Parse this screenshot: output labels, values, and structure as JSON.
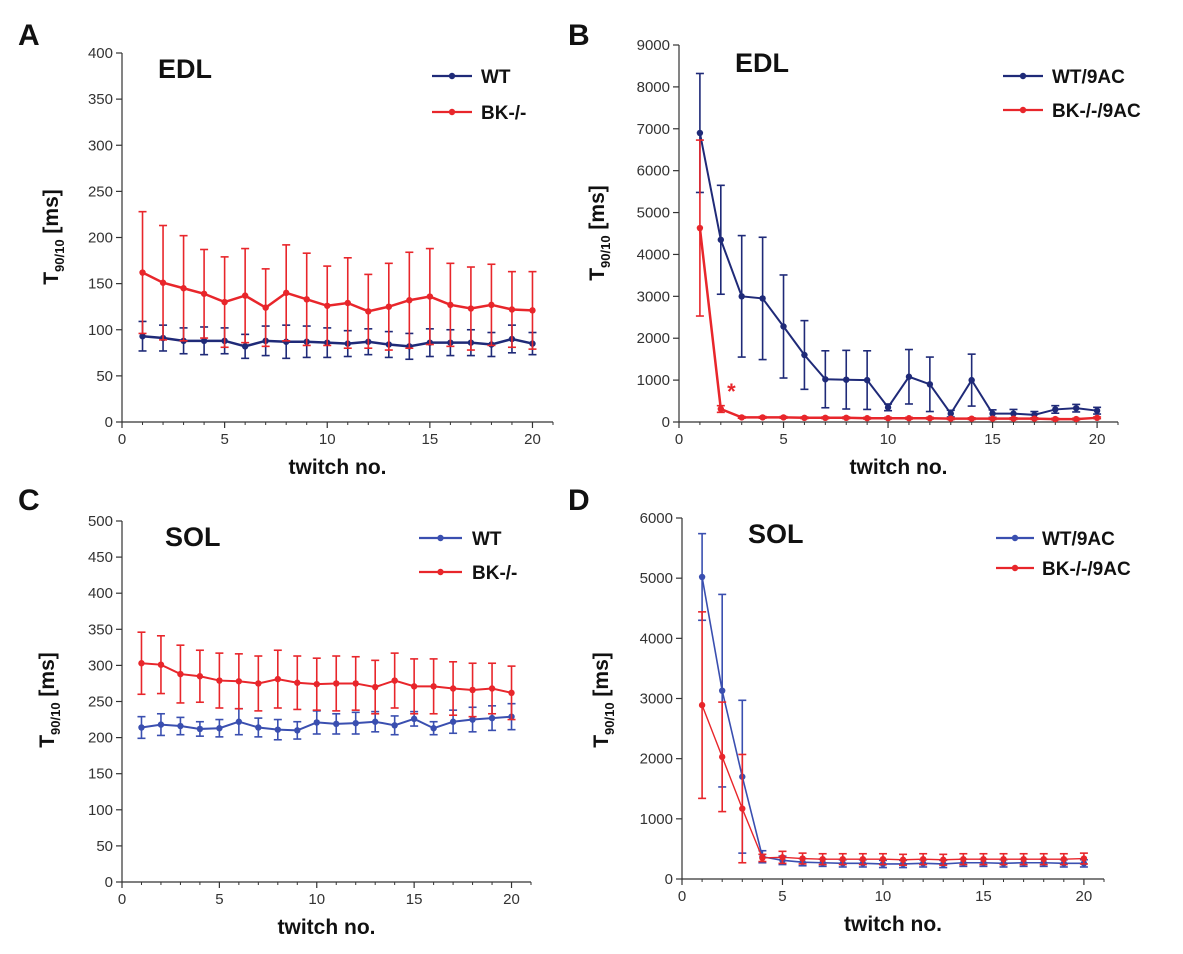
{
  "figure_label": "Four-panel figure: T90/10 relaxation time across twitches",
  "colors": {
    "wt_dark": "#1f2a78",
    "bk_red": "#e8262b",
    "wt_blue": "#3a4fb0",
    "axis": "#333333"
  },
  "chart_data": [
    {
      "panel": "A",
      "type": "line",
      "muscle": "EDL",
      "xlabel": "twitch no.",
      "ylabel_main": "T",
      "ylabel_sub": "90/10",
      "ylabel_unit": " [ms]",
      "xlim": [
        0,
        21
      ],
      "ylim": [
        0,
        400
      ],
      "xticks": [
        0,
        5,
        10,
        15,
        20
      ],
      "yticks": [
        0,
        50,
        100,
        150,
        200,
        250,
        300,
        350,
        400
      ],
      "x": [
        1,
        2,
        3,
        4,
        5,
        6,
        7,
        8,
        9,
        10,
        11,
        12,
        13,
        14,
        15,
        16,
        17,
        18,
        19,
        20
      ],
      "legend_position": "top-right",
      "series": [
        {
          "name": "WT",
          "color": "#1f2a78",
          "stroke_width": 2.5,
          "values": [
            93,
            91,
            88,
            88,
            88,
            82,
            88,
            87,
            87,
            86,
            85,
            87,
            84,
            82,
            86,
            86,
            86,
            84,
            90,
            85
          ],
          "errors": [
            16,
            14,
            14,
            15,
            14,
            13,
            16,
            18,
            17,
            16,
            14,
            14,
            14,
            14,
            15,
            14,
            14,
            13,
            15,
            12
          ]
        },
        {
          "name": "BK-/-",
          "color": "#e8262b",
          "stroke_width": 2.5,
          "values": [
            162,
            151,
            145,
            139,
            130,
            137,
            124,
            140,
            133,
            126,
            129,
            120,
            125,
            132,
            136,
            127,
            123,
            127,
            122,
            121
          ],
          "errors": [
            66,
            62,
            57,
            48,
            49,
            51,
            42,
            52,
            50,
            43,
            49,
            40,
            47,
            52,
            52,
            45,
            45,
            44,
            41,
            42
          ]
        }
      ]
    },
    {
      "panel": "B",
      "type": "line",
      "muscle": "EDL",
      "xlabel": "twitch no.",
      "ylabel_main": "T",
      "ylabel_sub": "90/10",
      "ylabel_unit": " [ms]",
      "xlim": [
        0,
        21
      ],
      "ylim": [
        0,
        9000
      ],
      "xticks": [
        0,
        5,
        10,
        15,
        20
      ],
      "yticks": [
        0,
        1000,
        2000,
        3000,
        4000,
        5000,
        6000,
        7000,
        8000,
        9000
      ],
      "x": [
        1,
        2,
        3,
        4,
        5,
        6,
        7,
        8,
        9,
        10,
        11,
        12,
        13,
        14,
        15,
        16,
        17,
        18,
        19,
        20
      ],
      "legend_position": "top-right",
      "annotation": {
        "text": "*",
        "x": 2.3,
        "y": 550,
        "color": "#e8262b"
      },
      "series": [
        {
          "name": "WT/9AC",
          "color": "#1f2a78",
          "stroke_width": 2,
          "values": [
            6900,
            4350,
            3000,
            2950,
            2280,
            1600,
            1020,
            1010,
            1000,
            350,
            1080,
            900,
            200,
            1000,
            200,
            200,
            170,
            300,
            330,
            270
          ],
          "errors": [
            1420,
            1300,
            1450,
            1460,
            1230,
            820,
            680,
            700,
            700,
            80,
            650,
            650,
            80,
            620,
            90,
            100,
            80,
            90,
            90,
            80
          ]
        },
        {
          "name": "BK-/-/9AC",
          "color": "#e8262b",
          "stroke_width": 2.5,
          "values": [
            4630,
            310,
            110,
            110,
            110,
            100,
            100,
            100,
            90,
            90,
            90,
            90,
            80,
            80,
            80,
            80,
            80,
            70,
            70,
            100
          ],
          "errors": [
            2100,
            80,
            20,
            20,
            20,
            20,
            20,
            20,
            20,
            20,
            20,
            20,
            20,
            20,
            20,
            20,
            20,
            20,
            20,
            20
          ]
        }
      ]
    },
    {
      "panel": "C",
      "type": "line",
      "muscle": "SOL",
      "xlabel": "twitch no.",
      "ylabel_main": "T",
      "ylabel_sub": "90/10",
      "ylabel_unit": " [ms]",
      "xlim": [
        0,
        21
      ],
      "ylim": [
        0,
        500
      ],
      "xticks": [
        0,
        5,
        10,
        15,
        20
      ],
      "yticks": [
        0,
        50,
        100,
        150,
        200,
        250,
        300,
        350,
        400,
        450,
        500
      ],
      "x": [
        1,
        2,
        3,
        4,
        5,
        6,
        7,
        8,
        9,
        10,
        11,
        12,
        13,
        14,
        15,
        16,
        17,
        18,
        19,
        20
      ],
      "legend_position": "top-right",
      "series": [
        {
          "name": "WT",
          "color": "#3a4fb0",
          "stroke_width": 2,
          "values": [
            214,
            218,
            216,
            212,
            213,
            222,
            214,
            211,
            210,
            221,
            219,
            220,
            222,
            217,
            226,
            213,
            222,
            225,
            227,
            229
          ],
          "errors": [
            15,
            15,
            12,
            10,
            12,
            18,
            13,
            14,
            12,
            16,
            14,
            15,
            14,
            13,
            10,
            9,
            16,
            17,
            17,
            18
          ]
        },
        {
          "name": "BK-/-",
          "color": "#e8262b",
          "stroke_width": 2,
          "values": [
            303,
            301,
            288,
            285,
            279,
            278,
            275,
            281,
            276,
            274,
            275,
            275,
            270,
            279,
            271,
            271,
            268,
            266,
            268,
            262
          ],
          "errors": [
            43,
            40,
            40,
            36,
            38,
            38,
            38,
            40,
            37,
            36,
            38,
            37,
            37,
            38,
            38,
            38,
            37,
            37,
            35,
            37
          ]
        }
      ]
    },
    {
      "panel": "D",
      "type": "line",
      "muscle": "SOL",
      "xlabel": "twitch no.",
      "ylabel_main": "T",
      "ylabel_sub": "90/10",
      "ylabel_unit": " [ms]",
      "xlim": [
        0,
        21
      ],
      "ylim": [
        0,
        6000
      ],
      "xticks": [
        0,
        5,
        10,
        15,
        20
      ],
      "yticks": [
        0,
        1000,
        2000,
        3000,
        4000,
        5000,
        6000
      ],
      "x": [
        1,
        2,
        3,
        4,
        5,
        6,
        7,
        8,
        9,
        10,
        11,
        12,
        13,
        14,
        15,
        16,
        17,
        18,
        19,
        20
      ],
      "legend_position": "top-right",
      "series": [
        {
          "name": "WT/9AC",
          "color": "#3a4fb0",
          "stroke_width": 1.6,
          "values": [
            5020,
            3130,
            1700,
            370,
            310,
            280,
            270,
            260,
            260,
            250,
            250,
            260,
            250,
            270,
            270,
            260,
            270,
            270,
            260,
            260
          ],
          "errors": [
            720,
            1600,
            1270,
            100,
            70,
            60,
            60,
            60,
            60,
            60,
            60,
            60,
            60,
            60,
            60,
            60,
            60,
            60,
            60,
            60
          ]
        },
        {
          "name": "BK-/-/9AC",
          "color": "#e8262b",
          "stroke_width": 1.4,
          "values": [
            2890,
            2030,
            1170,
            350,
            360,
            340,
            330,
            330,
            330,
            330,
            320,
            330,
            320,
            330,
            330,
            330,
            330,
            330,
            330,
            340
          ],
          "errors": [
            1550,
            910,
            900,
            60,
            100,
            90,
            90,
            90,
            90,
            90,
            90,
            90,
            90,
            90,
            90,
            90,
            90,
            90,
            90,
            90
          ]
        }
      ]
    }
  ]
}
